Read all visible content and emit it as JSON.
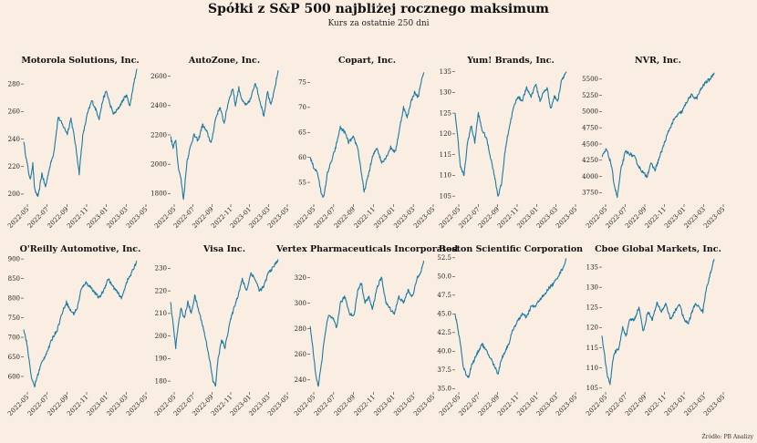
{
  "title": "Spółki z S&P 500 najbliżej rocznego maksimum",
  "subtitle": "Kurs za ostatnie 250 dni",
  "source": "Źródło: PB Analizy",
  "colors": {
    "background": "#faeee2",
    "line": "#1c7aa4"
  },
  "chart_data": [
    {
      "type": "line",
      "title": "Motorola Solutions, Inc.",
      "x_ticks": [
        "2022-05",
        "2022-07",
        "2022-09",
        "2022-11",
        "2023-01",
        "2023-03",
        "2023-05"
      ],
      "yticks": [
        200,
        220,
        240,
        260,
        280
      ],
      "ylim": [
        194,
        292
      ],
      "anchors": [
        [
          0,
          238
        ],
        [
          6,
          225
        ],
        [
          14,
          210
        ],
        [
          20,
          222
        ],
        [
          24,
          203
        ],
        [
          32,
          198
        ],
        [
          40,
          215
        ],
        [
          48,
          205
        ],
        [
          56,
          218
        ],
        [
          66,
          230
        ],
        [
          76,
          256
        ],
        [
          86,
          250
        ],
        [
          96,
          244
        ],
        [
          104,
          255
        ],
        [
          112,
          240
        ],
        [
          118,
          226
        ],
        [
          122,
          215
        ],
        [
          130,
          242
        ],
        [
          140,
          258
        ],
        [
          150,
          268
        ],
        [
          158,
          262
        ],
        [
          166,
          255
        ],
        [
          174,
          268
        ],
        [
          182,
          275
        ],
        [
          190,
          265
        ],
        [
          198,
          258
        ],
        [
          208,
          262
        ],
        [
          218,
          268
        ],
        [
          226,
          272
        ],
        [
          234,
          264
        ],
        [
          242,
          280
        ],
        [
          249,
          291
        ]
      ]
    },
    {
      "type": "line",
      "title": "AutoZone, Inc.",
      "x_ticks": [
        "2022-05",
        "2022-07",
        "2022-09",
        "2022-11",
        "2023-01",
        "2023-03",
        "2023-05"
      ],
      "yticks": [
        1800,
        2000,
        2200,
        2400,
        2600
      ],
      "ylim": [
        1740,
        2660
      ],
      "anchors": [
        [
          0,
          2190
        ],
        [
          6,
          2110
        ],
        [
          12,
          2170
        ],
        [
          18,
          1980
        ],
        [
          24,
          1900
        ],
        [
          30,
          1760
        ],
        [
          38,
          2020
        ],
        [
          46,
          2120
        ],
        [
          54,
          2200
        ],
        [
          64,
          2160
        ],
        [
          74,
          2270
        ],
        [
          84,
          2220
        ],
        [
          94,
          2140
        ],
        [
          104,
          2310
        ],
        [
          114,
          2390
        ],
        [
          124,
          2280
        ],
        [
          134,
          2430
        ],
        [
          144,
          2520
        ],
        [
          150,
          2400
        ],
        [
          158,
          2520
        ],
        [
          166,
          2430
        ],
        [
          176,
          2400
        ],
        [
          186,
          2450
        ],
        [
          196,
          2560
        ],
        [
          206,
          2440
        ],
        [
          216,
          2330
        ],
        [
          224,
          2500
        ],
        [
          232,
          2400
        ],
        [
          240,
          2500
        ],
        [
          249,
          2640
        ]
      ]
    },
    {
      "type": "line",
      "title": "Copart, Inc.",
      "x_ticks": [
        "2022-05",
        "2022-07",
        "2022-09",
        "2022-11",
        "2023-01",
        "2023-03",
        "2023-05"
      ],
      "yticks": [
        55,
        60,
        65,
        70,
        75
      ],
      "ylim": [
        51,
        78
      ],
      "anchors": [
        [
          0,
          60
        ],
        [
          8,
          58
        ],
        [
          16,
          57
        ],
        [
          24,
          53
        ],
        [
          30,
          52
        ],
        [
          38,
          57
        ],
        [
          46,
          59
        ],
        [
          56,
          62
        ],
        [
          66,
          66
        ],
        [
          76,
          65
        ],
        [
          84,
          63
        ],
        [
          94,
          64
        ],
        [
          104,
          62
        ],
        [
          112,
          57
        ],
        [
          118,
          53
        ],
        [
          126,
          56
        ],
        [
          136,
          60
        ],
        [
          146,
          62
        ],
        [
          156,
          59
        ],
        [
          166,
          60
        ],
        [
          176,
          62
        ],
        [
          186,
          61
        ],
        [
          196,
          66
        ],
        [
          204,
          70
        ],
        [
          212,
          68
        ],
        [
          220,
          71
        ],
        [
          228,
          73
        ],
        [
          236,
          72
        ],
        [
          242,
          75
        ],
        [
          249,
          77
        ]
      ]
    },
    {
      "type": "line",
      "title": "Yum! Brands, Inc.",
      "x_ticks": [
        "2022-05",
        "2022-07",
        "2022-09",
        "2022-11",
        "2023-01",
        "2023-03",
        "2023-05"
      ],
      "yticks": [
        105,
        110,
        115,
        120,
        125,
        130,
        135
      ],
      "ylim": [
        103.5,
        136
      ],
      "anchors": [
        [
          0,
          125
        ],
        [
          6,
          119
        ],
        [
          12,
          112
        ],
        [
          20,
          110
        ],
        [
          28,
          118
        ],
        [
          36,
          122
        ],
        [
          44,
          118
        ],
        [
          52,
          125
        ],
        [
          60,
          121
        ],
        [
          70,
          119
        ],
        [
          80,
          114
        ],
        [
          88,
          110
        ],
        [
          96,
          105
        ],
        [
          104,
          108
        ],
        [
          112,
          116
        ],
        [
          120,
          121
        ],
        [
          130,
          126
        ],
        [
          140,
          129
        ],
        [
          150,
          128
        ],
        [
          160,
          131
        ],
        [
          170,
          129
        ],
        [
          180,
          132
        ],
        [
          190,
          128
        ],
        [
          198,
          130
        ],
        [
          206,
          131
        ],
        [
          214,
          126
        ],
        [
          222,
          129
        ],
        [
          230,
          128
        ],
        [
          238,
          133
        ],
        [
          249,
          135
        ]
      ]
    },
    {
      "type": "line",
      "title": "NVR, Inc.",
      "x_ticks": [
        "2022-05",
        "2022-07",
        "2022-09",
        "2022-11",
        "2023-01",
        "2023-03",
        "2023-05"
      ],
      "yticks": [
        3750,
        4000,
        4250,
        4500,
        4750,
        5000,
        5250,
        5500
      ],
      "ylim": [
        3600,
        5680
      ],
      "anchors": [
        [
          0,
          4300
        ],
        [
          10,
          4420
        ],
        [
          20,
          4200
        ],
        [
          28,
          3850
        ],
        [
          34,
          3680
        ],
        [
          42,
          4100
        ],
        [
          52,
          4380
        ],
        [
          62,
          4350
        ],
        [
          72,
          4300
        ],
        [
          82,
          4150
        ],
        [
          92,
          4050
        ],
        [
          100,
          4000
        ],
        [
          108,
          4200
        ],
        [
          118,
          4100
        ],
        [
          128,
          4300
        ],
        [
          138,
          4500
        ],
        [
          148,
          4700
        ],
        [
          158,
          4850
        ],
        [
          168,
          4950
        ],
        [
          178,
          5000
        ],
        [
          188,
          5150
        ],
        [
          198,
          5250
        ],
        [
          210,
          5200
        ],
        [
          220,
          5350
        ],
        [
          230,
          5450
        ],
        [
          240,
          5500
        ],
        [
          249,
          5600
        ]
      ]
    },
    {
      "type": "line",
      "title": "O'Reilly Automotive, Inc.",
      "x_ticks": [
        "2022-05",
        "2022-07",
        "2022-09",
        "2022-11",
        "2023-01",
        "2023-03",
        "2023-05"
      ],
      "yticks": [
        600,
        650,
        700,
        750,
        800,
        850,
        900
      ],
      "ylim": [
        565,
        905
      ],
      "anchors": [
        [
          0,
          720
        ],
        [
          6,
          690
        ],
        [
          12,
          640
        ],
        [
          18,
          590
        ],
        [
          24,
          575
        ],
        [
          30,
          600
        ],
        [
          38,
          630
        ],
        [
          46,
          650
        ],
        [
          54,
          670
        ],
        [
          64,
          700
        ],
        [
          74,
          720
        ],
        [
          84,
          760
        ],
        [
          94,
          790
        ],
        [
          102,
          770
        ],
        [
          110,
          760
        ],
        [
          118,
          775
        ],
        [
          126,
          820
        ],
        [
          136,
          840
        ],
        [
          146,
          830
        ],
        [
          156,
          815
        ],
        [
          166,
          800
        ],
        [
          176,
          820
        ],
        [
          186,
          850
        ],
        [
          196,
          830
        ],
        [
          206,
          815
        ],
        [
          216,
          800
        ],
        [
          226,
          840
        ],
        [
          236,
          860
        ],
        [
          249,
          895
        ]
      ]
    },
    {
      "type": "line",
      "title": "Visa Inc.",
      "x_ticks": [
        "2022-05",
        "2022-07",
        "2022-09",
        "2022-11",
        "2023-01",
        "2023-03",
        "2023-05"
      ],
      "yticks": [
        180,
        190,
        200,
        210,
        220,
        230
      ],
      "ylim": [
        176,
        235
      ],
      "anchors": [
        [
          0,
          215
        ],
        [
          6,
          205
        ],
        [
          12,
          195
        ],
        [
          18,
          205
        ],
        [
          24,
          212
        ],
        [
          32,
          208
        ],
        [
          40,
          215
        ],
        [
          48,
          210
        ],
        [
          56,
          218
        ],
        [
          64,
          212
        ],
        [
          74,
          205
        ],
        [
          82,
          198
        ],
        [
          90,
          190
        ],
        [
          98,
          180
        ],
        [
          104,
          178
        ],
        [
          110,
          190
        ],
        [
          118,
          198
        ],
        [
          126,
          195
        ],
        [
          136,
          205
        ],
        [
          146,
          212
        ],
        [
          156,
          218
        ],
        [
          166,
          225
        ],
        [
          176,
          220
        ],
        [
          186,
          228
        ],
        [
          196,
          225
        ],
        [
          206,
          220
        ],
        [
          216,
          222
        ],
        [
          226,
          228
        ],
        [
          236,
          230
        ],
        [
          249,
          234
        ]
      ]
    },
    {
      "type": "line",
      "title": "Vertex Pharmaceuticals Incorporated",
      "x_ticks": [
        "2022-05",
        "2022-07",
        "2022-09",
        "2022-11",
        "2023-01",
        "2023-03",
        "2023-05"
      ],
      "yticks": [
        240,
        260,
        280,
        300,
        320
      ],
      "ylim": [
        232,
        336
      ],
      "anchors": [
        [
          0,
          282
        ],
        [
          6,
          265
        ],
        [
          12,
          245
        ],
        [
          18,
          235
        ],
        [
          24,
          250
        ],
        [
          32,
          275
        ],
        [
          40,
          290
        ],
        [
          50,
          288
        ],
        [
          58,
          280
        ],
        [
          66,
          300
        ],
        [
          76,
          305
        ],
        [
          86,
          292
        ],
        [
          96,
          290
        ],
        [
          104,
          310
        ],
        [
          112,
          316
        ],
        [
          120,
          300
        ],
        [
          128,
          305
        ],
        [
          136,
          295
        ],
        [
          146,
          312
        ],
        [
          156,
          320
        ],
        [
          166,
          300
        ],
        [
          176,
          295
        ],
        [
          184,
          292
        ],
        [
          194,
          305
        ],
        [
          204,
          300
        ],
        [
          214,
          310
        ],
        [
          224,
          305
        ],
        [
          234,
          320
        ],
        [
          242,
          325
        ],
        [
          249,
          333
        ]
      ]
    },
    {
      "type": "line",
      "title": "Boston Scientific Corporation",
      "x_ticks": [
        "2022-05",
        "2022-07",
        "2022-09",
        "2022-11",
        "2023-01",
        "2023-03",
        "2023-05"
      ],
      "yticks": [
        35.0,
        37.5,
        40.0,
        42.5,
        45.0,
        47.5,
        50.0,
        52.5
      ],
      "ylim": [
        34.8,
        52.6
      ],
      "anchors": [
        [
          0,
          45
        ],
        [
          6,
          43
        ],
        [
          12,
          41
        ],
        [
          18,
          38
        ],
        [
          24,
          37
        ],
        [
          30,
          36.5
        ],
        [
          36,
          38
        ],
        [
          44,
          39
        ],
        [
          52,
          40
        ],
        [
          60,
          41
        ],
        [
          70,
          40
        ],
        [
          80,
          39
        ],
        [
          88,
          38
        ],
        [
          96,
          37
        ],
        [
          104,
          39
        ],
        [
          112,
          40
        ],
        [
          120,
          41
        ],
        [
          130,
          43
        ],
        [
          140,
          44
        ],
        [
          150,
          45
        ],
        [
          160,
          44.5
        ],
        [
          170,
          46
        ],
        [
          180,
          46
        ],
        [
          190,
          47
        ],
        [
          200,
          47.5
        ],
        [
          210,
          48.5
        ],
        [
          220,
          49
        ],
        [
          230,
          50
        ],
        [
          240,
          51
        ],
        [
          249,
          52.3
        ]
      ]
    },
    {
      "type": "line",
      "title": "Cboe Global Markets, Inc.",
      "x_ticks": [
        "2022-05",
        "2022-07",
        "2022-09",
        "2022-11",
        "2023-01",
        "2023-03",
        "2023-05"
      ],
      "yticks": [
        105,
        110,
        115,
        120,
        125,
        130,
        135
      ],
      "ylim": [
        104.5,
        137.5
      ],
      "anchors": [
        [
          0,
          118
        ],
        [
          6,
          113
        ],
        [
          12,
          108
        ],
        [
          18,
          106
        ],
        [
          24,
          112
        ],
        [
          30,
          114
        ],
        [
          38,
          115
        ],
        [
          46,
          120
        ],
        [
          54,
          118
        ],
        [
          62,
          122
        ],
        [
          72,
          122
        ],
        [
          82,
          125
        ],
        [
          92,
          119
        ],
        [
          102,
          124
        ],
        [
          112,
          122
        ],
        [
          122,
          126
        ],
        [
          132,
          124
        ],
        [
          142,
          126
        ],
        [
          152,
          122
        ],
        [
          162,
          124
        ],
        [
          172,
          126
        ],
        [
          182,
          122
        ],
        [
          192,
          121
        ],
        [
          200,
          124
        ],
        [
          208,
          126
        ],
        [
          216,
          125
        ],
        [
          224,
          124
        ],
        [
          232,
          130
        ],
        [
          240,
          133
        ],
        [
          249,
          137
        ]
      ]
    }
  ]
}
